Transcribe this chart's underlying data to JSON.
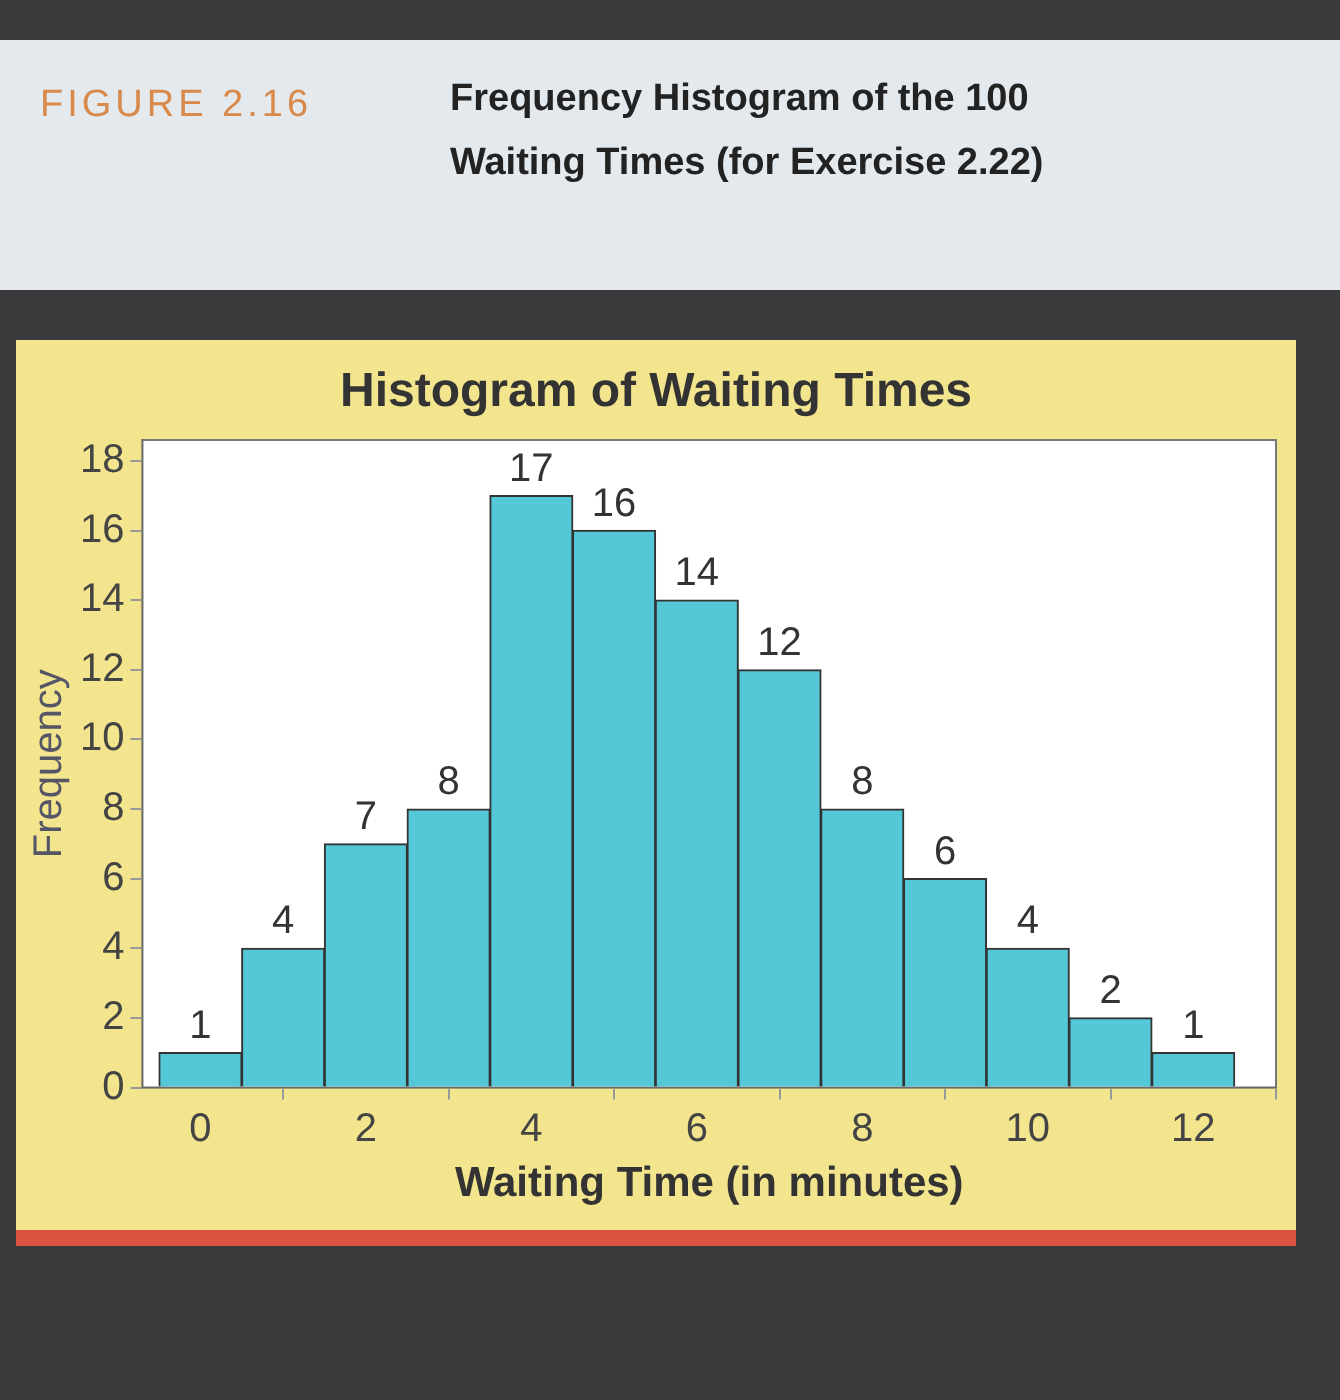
{
  "chart_data": {
    "type": "histogram",
    "title": "Histogram of Waiting Times",
    "subtitle": "Frequency Histogram of the 100 Waiting Times (for Exercise 2.22)",
    "annotations": [
      "FIGURE 2.16"
    ],
    "xlabel": "Waiting Time (in minutes)",
    "ylabel": "Frequency",
    "bins": [
      -0.5,
      0.5,
      1.5,
      2.5,
      3.5,
      4.5,
      5.5,
      6.5,
      7.5,
      8.5,
      9.5,
      10.5,
      11.5,
      12.5
    ],
    "values": [
      1,
      4,
      7,
      8,
      17,
      16,
      14,
      12,
      8,
      6,
      4,
      2,
      1
    ],
    "color": "#55c8d8",
    "xlim": [
      -0.7,
      13
    ],
    "xticks": [
      0,
      2,
      4,
      6,
      8,
      10,
      12
    ],
    "ylim": [
      0,
      18.6
    ],
    "yticks": [
      0,
      2,
      4,
      6,
      8,
      10,
      12,
      14,
      16,
      18
    ],
    "data_labels": true,
    "grid": false,
    "legend": false
  }
}
